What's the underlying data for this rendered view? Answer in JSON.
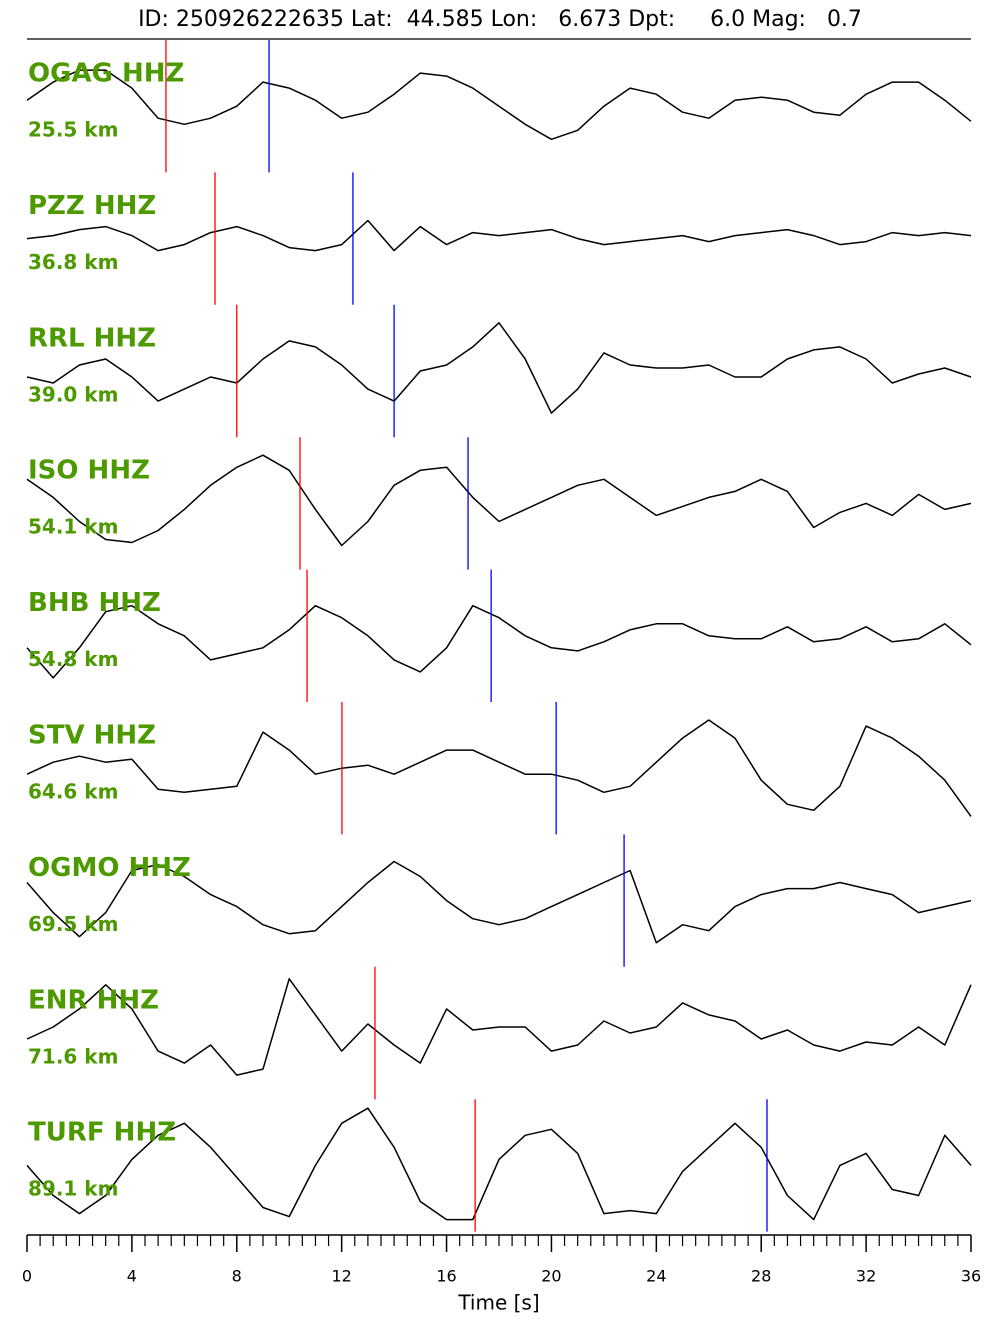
{
  "chart_data": {
    "type": "seismogram",
    "title": "ID: 250926222635 Lat:  44.585 Lon:   6.673 Dpt:     6.0 Mag:   0.7",
    "xlabel": "Time [s]",
    "xlim": [
      0,
      36
    ],
    "xticks": [
      0,
      4,
      8,
      12,
      16,
      20,
      24,
      28,
      32,
      36
    ],
    "xminorticks": [
      0.5,
      1,
      1.5,
      2,
      2.5,
      3,
      3.5,
      4.5,
      5,
      5.5,
      6,
      6.5,
      7,
      7.5,
      8.5,
      9,
      9.5,
      10,
      10.5,
      11,
      11.5,
      12.5,
      13,
      13.5,
      14,
      14.5,
      15,
      15.5,
      16.5,
      17,
      17.5,
      18,
      18.5,
      19,
      19.5,
      20.5,
      21,
      21.5,
      22,
      22.5,
      23,
      23.5,
      24.5,
      25,
      25.5,
      26,
      26.5,
      27,
      27.5,
      28.5,
      29,
      29.5,
      30,
      30.5,
      31,
      31.5,
      32.5,
      33,
      33.5,
      34,
      34.5,
      35,
      35.5
    ],
    "x": [
      0,
      1,
      2,
      3,
      4,
      5,
      6,
      7,
      8,
      9,
      10,
      11,
      12,
      13,
      14,
      15,
      16,
      17,
      18,
      19,
      20,
      21,
      22,
      23,
      24,
      25,
      26,
      27,
      28,
      29,
      30,
      31,
      32,
      33,
      34,
      35,
      36
    ],
    "label_color": "#4c9900",
    "trace_color": "#000000",
    "p_color": "#ff0000",
    "s_color": "#0000ff",
    "series": [
      {
        "name": "OGAG HHZ",
        "distance": "25.5 km",
        "p_pick": 5.3,
        "s_pick": 9.23,
        "values": [
          0.1,
          0.4,
          0.6,
          0.6,
          0.3,
          -0.2,
          -0.3,
          -0.2,
          0,
          0.4,
          0.3,
          0.1,
          -0.2,
          -0.1,
          0.2,
          0.55,
          0.5,
          0.3,
          0,
          -0.3,
          -0.55,
          -0.4,
          0,
          0.3,
          0.2,
          -0.1,
          -0.2,
          0.1,
          0.15,
          0.1,
          -0.1,
          -0.15,
          0.2,
          0.4,
          0.4,
          0.1,
          -0.25
        ]
      },
      {
        "name": "PZZ HHZ",
        "distance": "36.8 km",
        "p_pick": 7.17,
        "s_pick": 12.43,
        "values": [
          0,
          0.05,
          0.15,
          0.2,
          0.05,
          -0.2,
          -0.1,
          0.1,
          0.2,
          0.05,
          -0.15,
          -0.2,
          -0.1,
          0.3,
          -0.2,
          0.2,
          -0.1,
          0.1,
          0.05,
          0.1,
          0.15,
          0,
          -0.1,
          -0.05,
          0,
          0.05,
          -0.05,
          0.05,
          0.1,
          0.15,
          0.05,
          -0.1,
          -0.05,
          0.1,
          0.05,
          0.1,
          0.05
        ]
      },
      {
        "name": "RRL HHZ",
        "distance": "39.0 km",
        "p_pick": 8.0,
        "s_pick": 14.0,
        "values": [
          -0.1,
          -0.2,
          0.1,
          0.2,
          -0.1,
          -0.5,
          -0.3,
          -0.1,
          -0.2,
          0.2,
          0.5,
          0.4,
          0.1,
          -0.3,
          -0.5,
          0,
          0.1,
          0.4,
          0.8,
          0.2,
          -0.7,
          -0.3,
          0.3,
          0.1,
          0.05,
          0.05,
          0.1,
          -0.1,
          -0.1,
          0.2,
          0.35,
          0.4,
          0.2,
          -0.2,
          -0.05,
          0.05,
          -0.1
        ]
      },
      {
        "name": "ISO HHZ",
        "distance": "54.1 km",
        "p_pick": 10.41,
        "s_pick": 16.82,
        "values": [
          0.4,
          0.1,
          -0.3,
          -0.6,
          -0.65,
          -0.45,
          -0.1,
          0.3,
          0.6,
          0.8,
          0.55,
          -0.1,
          -0.7,
          -0.3,
          0.3,
          0.55,
          0.6,
          0.1,
          -0.3,
          -0.1,
          0.1,
          0.3,
          0.4,
          0.1,
          -0.2,
          -0.05,
          0.1,
          0.2,
          0.4,
          0.2,
          -0.4,
          -0.15,
          0,
          -0.2,
          0.15,
          -0.1,
          0
        ]
      },
      {
        "name": "BHB HHZ",
        "distance": "54.8 km",
        "p_pick": 10.68,
        "s_pick": 17.7,
        "values": [
          -0.2,
          -0.7,
          -0.2,
          0.4,
          0.5,
          0.2,
          0,
          -0.4,
          -0.3,
          -0.2,
          0.1,
          0.5,
          0.3,
          0,
          -0.4,
          -0.6,
          -0.2,
          0.5,
          0.3,
          0,
          -0.2,
          -0.25,
          -0.1,
          0.1,
          0.2,
          0.2,
          0,
          -0.05,
          -0.05,
          0.15,
          -0.1,
          -0.05,
          0.15,
          -0.1,
          -0.05,
          0.2,
          -0.15
        ]
      },
      {
        "name": "STV HHZ",
        "distance": "64.6 km",
        "p_pick": 12.01,
        "s_pick": 20.18,
        "values": [
          -0.1,
          0.1,
          0.2,
          0.1,
          0.15,
          -0.35,
          -0.4,
          -0.35,
          -0.3,
          0.6,
          0.3,
          -0.1,
          0,
          0.05,
          -0.1,
          0.1,
          0.3,
          0.3,
          0.1,
          -0.1,
          -0.1,
          -0.2,
          -0.4,
          -0.3,
          0.1,
          0.5,
          0.8,
          0.5,
          -0.2,
          -0.6,
          -0.7,
          -0.3,
          0.7,
          0.5,
          0.2,
          -0.2,
          -0.8
        ]
      },
      {
        "name": "OGMO HHZ",
        "distance": "69.5 km",
        "p_pick": null,
        "s_pick": 22.77,
        "values": [
          0.3,
          -0.2,
          -0.6,
          -0.2,
          0.5,
          0.6,
          0.4,
          0.1,
          -0.1,
          -0.4,
          -0.55,
          -0.5,
          -0.1,
          0.3,
          0.65,
          0.4,
          0,
          -0.3,
          -0.4,
          -0.3,
          -0.1,
          0.1,
          0.3,
          0.5,
          -0.7,
          -0.4,
          -0.5,
          -0.1,
          0.1,
          0.2,
          0.2,
          0.3,
          0.2,
          0.1,
          -0.2,
          -0.1,
          0
        ]
      },
      {
        "name": "ENR HHZ",
        "distance": "71.6 km",
        "p_pick": 13.27,
        "s_pick": null,
        "values": [
          -0.1,
          0.1,
          0.4,
          0.8,
          0.4,
          -0.3,
          -0.5,
          -0.2,
          -0.7,
          -0.6,
          0.9,
          0.3,
          -0.3,
          0.15,
          -0.2,
          -0.5,
          0.4,
          0.05,
          0.1,
          0.1,
          -0.3,
          -0.2,
          0.2,
          0,
          0.1,
          0.5,
          0.3,
          0.2,
          -0.1,
          0.05,
          -0.2,
          -0.3,
          -0.15,
          -0.2,
          0.1,
          -0.2,
          0.8
        ]
      },
      {
        "name": "TURF HHZ",
        "distance": "89.1 km",
        "p_pick": 17.09,
        "s_pick": 28.22,
        "values": [
          0,
          -0.5,
          -0.8,
          -0.5,
          0.1,
          0.5,
          0.7,
          0.3,
          -0.2,
          -0.7,
          -0.85,
          0,
          0.7,
          0.95,
          0.3,
          -0.6,
          -0.9,
          -0.9,
          0.1,
          0.5,
          0.6,
          0.2,
          -0.8,
          -0.75,
          -0.8,
          -0.1,
          0.3,
          0.7,
          0.3,
          -0.5,
          -0.9,
          0,
          0.2,
          -0.4,
          -0.5,
          0.5,
          0
        ]
      }
    ]
  }
}
